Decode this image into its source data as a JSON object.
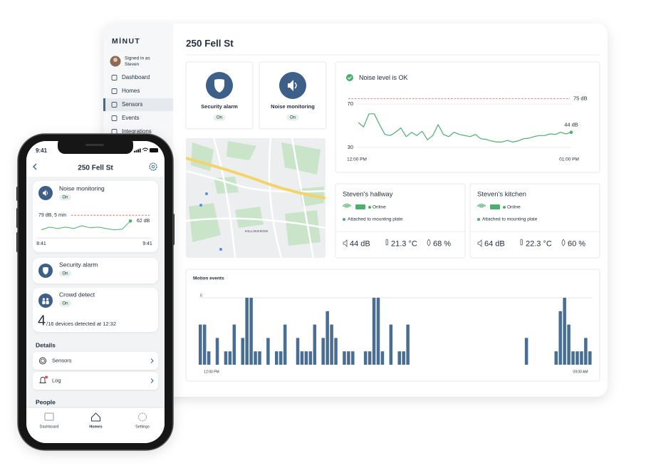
{
  "tablet": {
    "logo": "MİNUT",
    "signed_in_as": "Signed in as",
    "user": "Steven",
    "nav": [
      "Dashboard",
      "Homes",
      "Sensors",
      "Events",
      "Integrations"
    ],
    "title": "250 Fell St",
    "features": [
      {
        "label": "Security alarm",
        "status": "On"
      },
      {
        "label": "Noise monitoring",
        "status": "On"
      }
    ],
    "map": {
      "label": "HILLINGDON"
    },
    "noise": {
      "type": "line",
      "title": "Noise level is OK",
      "values": [
        53,
        49,
        61,
        61,
        51,
        42,
        41,
        44,
        48,
        40,
        44,
        41,
        45,
        37,
        41,
        51,
        42,
        40,
        44,
        42,
        41,
        40,
        42,
        38,
        37.5,
        36,
        35,
        35,
        36.5,
        35,
        36,
        38,
        38.5,
        40,
        41,
        41,
        42.5,
        42,
        44,
        42.5,
        44
      ],
      "ylim": [
        30,
        76
      ],
      "yticks": [
        30,
        70
      ],
      "threshold": 75,
      "threshold_label": "75 dB",
      "end_label": "44 dB",
      "x_labels": [
        "12:00 PM",
        "01:00 PM"
      ],
      "color": "#4caf6e",
      "threshold_color": "#e57373"
    },
    "sensors": [
      {
        "name": "Steven's hallway",
        "status": "Online",
        "mount": "Attached to mounting plate",
        "noise": "44 dB",
        "temperature": "21.3 °C",
        "humidity": "68 %"
      },
      {
        "name": "Steven's kitchen",
        "status": "Online",
        "mount": "Attached to mounting plate",
        "noise": "64 dB",
        "temperature": "22.3 °C",
        "humidity": "60 %"
      }
    ],
    "motion": {
      "type": "bar",
      "title": "Motion events",
      "values": [
        3,
        3,
        1,
        0,
        2,
        0,
        1,
        1,
        3,
        0,
        2,
        5,
        5,
        1,
        1,
        0,
        2,
        0,
        1,
        1,
        3,
        0,
        0,
        2,
        1,
        1,
        1,
        3,
        0,
        2,
        4,
        3,
        2,
        0,
        1,
        1,
        1,
        0,
        0,
        1,
        1,
        5,
        5,
        1,
        0,
        3,
        0,
        1,
        1,
        3,
        0,
        0,
        0,
        0,
        0,
        0,
        0,
        0,
        0,
        0,
        0,
        0,
        0,
        0,
        0,
        0,
        0,
        0,
        0,
        0,
        0,
        0,
        0,
        0,
        0,
        0,
        0,
        2,
        0,
        0,
        0,
        0,
        0,
        0,
        1,
        4,
        5,
        3,
        1,
        1,
        1,
        2,
        1
      ],
      "ylim": [
        0,
        5
      ],
      "yticks": [
        5
      ],
      "x_labels": [
        "12:00 PM",
        "09:00 AM"
      ],
      "color": "#4a6d94"
    }
  },
  "phone": {
    "time": "9:41",
    "title": "250 Fell St",
    "noise": {
      "type": "line",
      "title": "Noise monitoring",
      "status": "On",
      "values": [
        36,
        44,
        40,
        44,
        40,
        48,
        42,
        44,
        40,
        36,
        38,
        62
      ],
      "ylim": [
        10,
        90
      ],
      "threshold": 79,
      "threshold_label": "79 dB, 5 min",
      "end_label": "62 dB",
      "x_labels": [
        "8:41",
        "9:41"
      ],
      "color": "#4caf6e",
      "threshold_color": "#d9534f"
    },
    "alarm": {
      "title": "Security alarm",
      "status": "On"
    },
    "crowd": {
      "title": "Crowd detect",
      "status": "On",
      "count": 4,
      "detail": "/16 devices detected at 12:32"
    },
    "details_heading": "Details",
    "details": [
      "Sensors",
      "Log"
    ],
    "people_heading": "People",
    "tabs": [
      "Dashboard",
      "Homes",
      "Settings"
    ]
  }
}
